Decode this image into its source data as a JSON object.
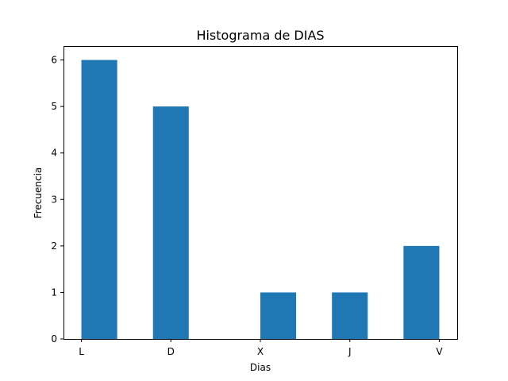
{
  "chart_data": {
    "type": "bar",
    "title": "Histograma de DIAS",
    "xlabel": "Dias",
    "ylabel": "Frecuencia",
    "bin_edges": [
      0,
      0.4,
      0.8,
      1.2,
      1.6,
      2.0,
      2.4,
      2.8,
      3.2,
      3.6,
      4.0
    ],
    "counts": [
      6,
      0,
      5,
      0,
      0,
      1,
      0,
      1,
      0,
      2
    ],
    "x_ticks": [
      {
        "value": 0,
        "label": "L"
      },
      {
        "value": 1,
        "label": "D"
      },
      {
        "value": 2,
        "label": "X"
      },
      {
        "value": 3,
        "label": "J"
      },
      {
        "value": 4,
        "label": "V"
      }
    ],
    "y_ticks": [
      0,
      1,
      2,
      3,
      4,
      5,
      6
    ],
    "xlim": [
      -0.2,
      4.2
    ],
    "ylim": [
      0,
      6.3
    ],
    "bar_color": "#1f77b4",
    "grid": false,
    "legend": false
  }
}
